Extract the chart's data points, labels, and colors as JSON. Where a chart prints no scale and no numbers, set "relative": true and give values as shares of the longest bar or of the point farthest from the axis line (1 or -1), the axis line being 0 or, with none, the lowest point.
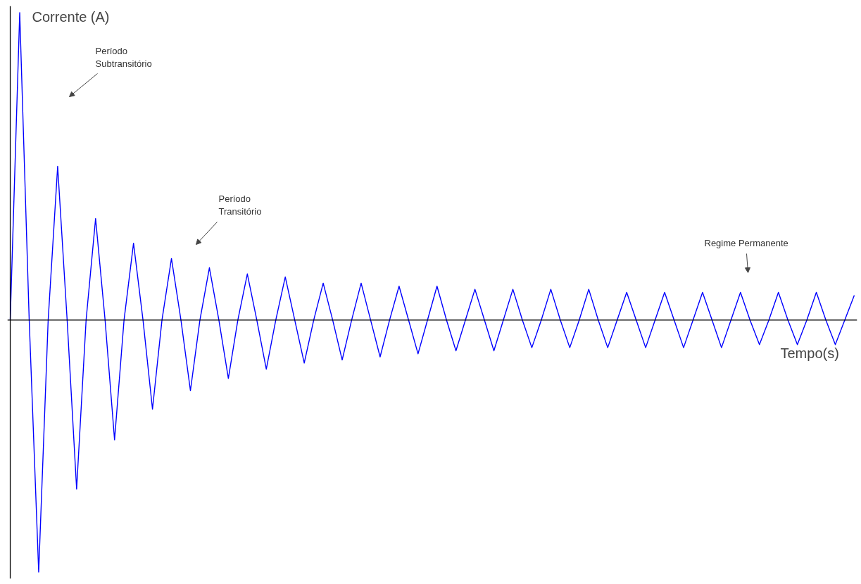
{
  "chart_data": {
    "type": "line",
    "relative": true,
    "xlabel": "Tempo(s)",
    "ylabel": "Corrente (A)",
    "annotations": [
      "Período Subtransitório",
      "Período Transitório",
      "Regime Permanente"
    ],
    "categories": [
      null,
      null,
      null,
      null,
      null,
      null,
      null,
      null,
      null,
      null,
      null,
      null,
      null,
      null,
      null,
      null,
      null,
      null,
      null,
      null,
      null,
      null,
      null,
      null,
      null,
      null,
      null,
      null,
      null,
      null,
      null,
      null,
      null,
      null,
      null,
      null,
      null,
      null,
      null,
      null,
      null,
      null,
      null,
      null,
      null,
      null,
      null,
      null,
      null,
      null,
      null,
      null,
      null,
      null,
      null,
      null,
      null,
      null,
      null,
      null,
      null,
      null,
      null,
      null,
      null,
      null,
      null,
      null,
      null,
      null,
      null,
      null,
      null,
      null,
      null,
      null,
      null,
      null,
      null,
      null,
      null,
      null,
      null,
      null,
      null,
      null,
      null,
      null,
      null,
      null
    ],
    "series": [
      {
        "color": "#0000ff",
        "values": [
          0,
          1.0,
          0,
          -0.82,
          0,
          0.5,
          0,
          -0.55,
          0,
          0.33,
          0,
          -0.39,
          0,
          0.25,
          0,
          -0.29,
          0,
          0.2,
          0,
          -0.23,
          0,
          0.17,
          0,
          -0.19,
          0,
          0.15,
          0,
          -0.16,
          0,
          0.14,
          0,
          -0.14,
          0,
          0.12,
          0,
          -0.13,
          0,
          0.12,
          0,
          -0.12,
          0,
          0.11,
          0,
          -0.11,
          0,
          0.11,
          0,
          -0.1,
          0,
          0.1,
          0,
          -0.1,
          0,
          0.1,
          0,
          -0.09,
          0,
          0.1,
          0,
          -0.09,
          0,
          0.1,
          0,
          -0.09,
          0,
          0.09,
          0,
          -0.09,
          0,
          0.09,
          0,
          -0.09,
          0,
          0.09,
          0,
          -0.09,
          0,
          0.09,
          0,
          -0.08,
          0,
          0.09,
          0,
          -0.08,
          0,
          0.09,
          0,
          -0.08,
          0,
          0.08
        ]
      }
    ],
    "marker": "none",
    "line_style": "solid"
  }
}
